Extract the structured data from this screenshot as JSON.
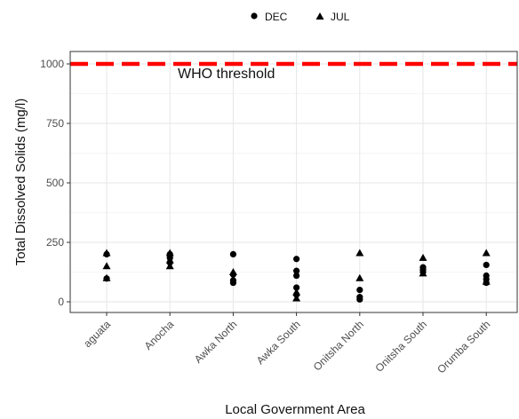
{
  "chart_data": {
    "type": "scatter",
    "xlabel": "Local Government Area",
    "ylabel": "Total Dissolved Solids (mg/l)",
    "categories": [
      "aguata",
      "Anocha",
      "Awka North",
      "Awka South",
      "Onitsha North",
      "Onitsha South",
      "Orumba South"
    ],
    "ylim": [
      -40,
      1050
    ],
    "yticks": [
      0,
      250,
      500,
      750,
      1000
    ],
    "grid": true,
    "legend": {
      "position": "top",
      "entries": [
        "DEC",
        "JUL"
      ]
    },
    "threshold": {
      "value": 1000,
      "label": "WHO threshold",
      "color": "#ff0000"
    },
    "series": [
      {
        "name": "DEC",
        "marker": "circle",
        "points": [
          {
            "category": "aguata",
            "values": [
              200,
              98
            ]
          },
          {
            "category": "Anocha",
            "values": [
              200,
              185,
              165
            ]
          },
          {
            "category": "Awka North",
            "values": [
              200,
              115,
              90,
              80
            ]
          },
          {
            "category": "Awka South",
            "values": [
              180,
              130,
              110,
              60,
              30
            ]
          },
          {
            "category": "Onitsha North",
            "values": [
              50,
              20,
              10
            ]
          },
          {
            "category": "Onitsha South",
            "values": [
              145,
              135,
              125
            ]
          },
          {
            "category": "Orumba South",
            "values": [
              155,
              110,
              95,
              80
            ]
          }
        ]
      },
      {
        "name": "JUL",
        "marker": "triangle",
        "points": [
          {
            "category": "aguata",
            "values": [
              205,
              150,
              100
            ]
          },
          {
            "category": "Anocha",
            "values": [
              205,
              175,
              150
            ]
          },
          {
            "category": "Awka North",
            "values": [
              125
            ]
          },
          {
            "category": "Awka South",
            "values": [
              40,
              15
            ]
          },
          {
            "category": "Onitsha North",
            "values": [
              205,
              100
            ]
          },
          {
            "category": "Onitsha South",
            "values": [
              185,
              120
            ]
          },
          {
            "category": "Orumba South",
            "values": [
              205,
              85
            ]
          }
        ]
      }
    ]
  }
}
